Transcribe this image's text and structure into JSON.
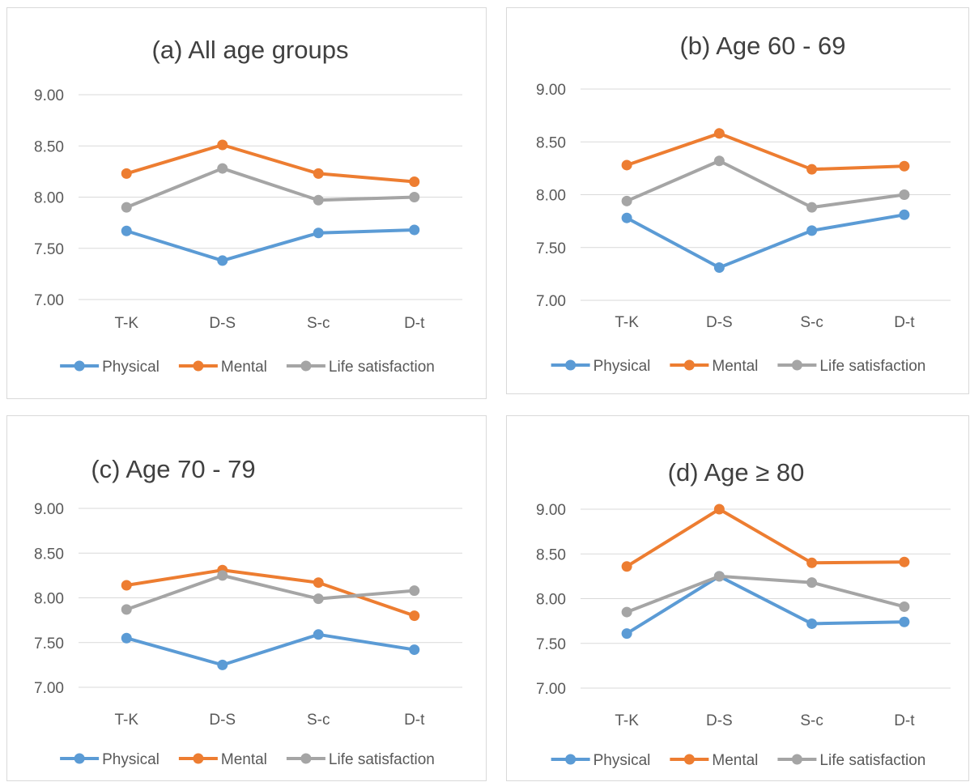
{
  "colors": {
    "physical": "#5b9bd5",
    "mental": "#ed7d31",
    "life": "#a5a5a5"
  },
  "chart_data": [
    {
      "type": "line",
      "title": "(a) All age groups",
      "categories": [
        "T-K",
        "D-S",
        "S-c",
        "D-t"
      ],
      "ylim": [
        7.0,
        9.0
      ],
      "yticks": [
        "9.00",
        "8.50",
        "8.00",
        "7.50",
        "7.00"
      ],
      "grid": true,
      "legend": "bottom",
      "series": [
        {
          "name": "Physical",
          "values": [
            7.67,
            7.38,
            7.65,
            7.68
          ]
        },
        {
          "name": "Mental",
          "values": [
            8.23,
            8.51,
            8.23,
            8.15
          ]
        },
        {
          "name": "Life satisfaction",
          "values": [
            7.9,
            8.28,
            7.97,
            8.0
          ]
        }
      ]
    },
    {
      "type": "line",
      "title": "(b) Age 60 - 69",
      "categories": [
        "T-K",
        "D-S",
        "S-c",
        "D-t"
      ],
      "ylim": [
        7.0,
        9.0
      ],
      "yticks": [
        "9.00",
        "8.50",
        "8.00",
        "7.50",
        "7.00"
      ],
      "grid": true,
      "legend": "bottom",
      "series": [
        {
          "name": "Physical",
          "values": [
            7.78,
            7.31,
            7.66,
            7.81
          ]
        },
        {
          "name": "Mental",
          "values": [
            8.28,
            8.58,
            8.24,
            8.27
          ]
        },
        {
          "name": "Life satisfaction",
          "values": [
            7.94,
            8.32,
            7.88,
            8.0
          ]
        }
      ]
    },
    {
      "type": "line",
      "title": "(c) Age 70 - 79",
      "categories": [
        "T-K",
        "D-S",
        "S-c",
        "D-t"
      ],
      "ylim": [
        7.0,
        9.0
      ],
      "yticks": [
        "9.00",
        "8.50",
        "8.00",
        "7.50",
        "7.00"
      ],
      "grid": true,
      "legend": "bottom",
      "series": [
        {
          "name": "Physical",
          "values": [
            7.55,
            7.25,
            7.59,
            7.42
          ]
        },
        {
          "name": "Mental",
          "values": [
            8.14,
            8.31,
            8.17,
            7.8
          ]
        },
        {
          "name": "Life satisfaction",
          "values": [
            7.87,
            8.25,
            7.99,
            8.08
          ]
        }
      ]
    },
    {
      "type": "line",
      "title": "(d) Age ≥ 80",
      "categories": [
        "T-K",
        "D-S",
        "S-c",
        "D-t"
      ],
      "ylim": [
        7.0,
        9.0
      ],
      "yticks": [
        "9.00",
        "8.50",
        "8.00",
        "7.50",
        "7.00"
      ],
      "grid": true,
      "legend": "bottom",
      "series": [
        {
          "name": "Physical",
          "values": [
            7.61,
            8.25,
            7.72,
            7.74
          ]
        },
        {
          "name": "Mental",
          "values": [
            8.36,
            9.0,
            8.4,
            8.41
          ]
        },
        {
          "name": "Life satisfaction",
          "values": [
            7.85,
            8.25,
            8.18,
            7.91
          ]
        }
      ]
    }
  ]
}
